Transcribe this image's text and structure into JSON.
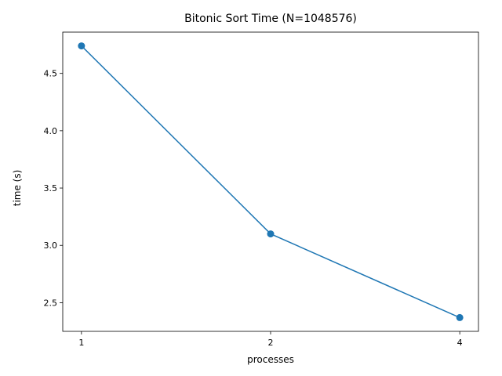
{
  "chart_data": {
    "type": "line",
    "title": "Bitonic Sort Time (N=1048576)",
    "xlabel": "processes",
    "ylabel": "time (s)",
    "categories": [
      "1",
      "2",
      "4"
    ],
    "series": [
      {
        "values": [
          4.74,
          3.1,
          2.37
        ],
        "color": "#1f77b4",
        "marker": "circle"
      }
    ],
    "yticks": [
      "2.5",
      "3.0",
      "3.5",
      "4.0",
      "4.5"
    ],
    "ylim": [
      2.25,
      4.86
    ],
    "grid": false,
    "legend": "none"
  }
}
